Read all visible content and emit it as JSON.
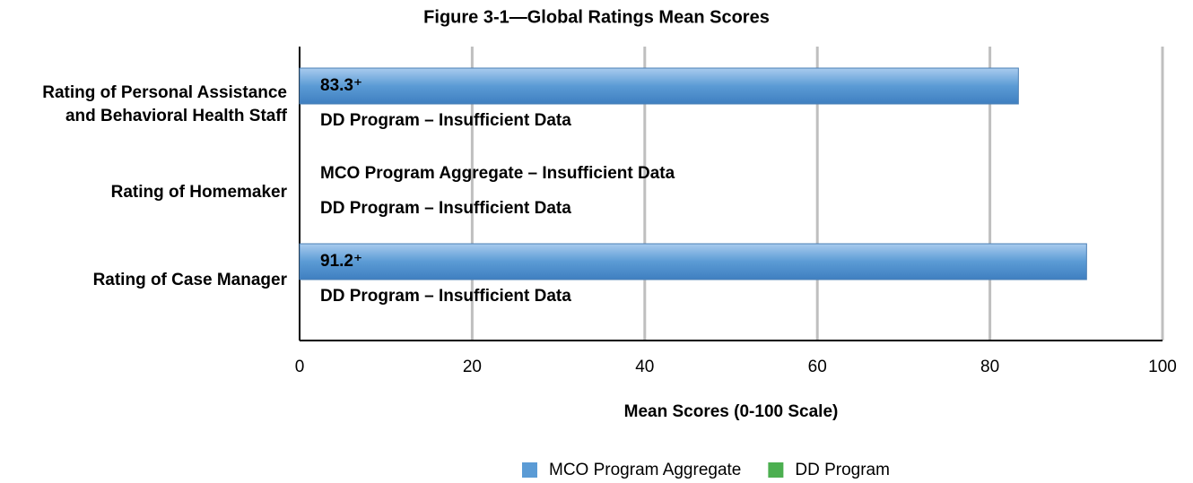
{
  "chart_data": {
    "type": "bar",
    "orientation": "horizontal",
    "title": "Figure 3-1—Global Ratings Mean Scores",
    "categories": [
      "Rating of Personal Assistance and Behavioral Health Staff",
      "Rating of Homemaker",
      "Rating of Case Manager"
    ],
    "series": [
      {
        "name": "MCO Program Aggregate",
        "color": "#5b9bd5",
        "values": [
          83.3,
          null,
          91.2
        ],
        "value_labels": [
          "83.3⁺",
          "MCO Program Aggregate – Insufficient Data",
          "91.2⁺"
        ]
      },
      {
        "name": "DD Program",
        "color": "#4caf50",
        "values": [
          null,
          null,
          null
        ],
        "value_labels": [
          "DD Program – Insufficient Data",
          "DD Program – Insufficient Data",
          "DD Program – Insufficient Data"
        ]
      }
    ],
    "xlabel": "Mean Scores (0-100 Scale)",
    "xlim": [
      0,
      100
    ],
    "xticks": [
      0,
      20,
      40,
      60,
      80,
      100
    ],
    "grid": true,
    "legend": "bottom"
  }
}
